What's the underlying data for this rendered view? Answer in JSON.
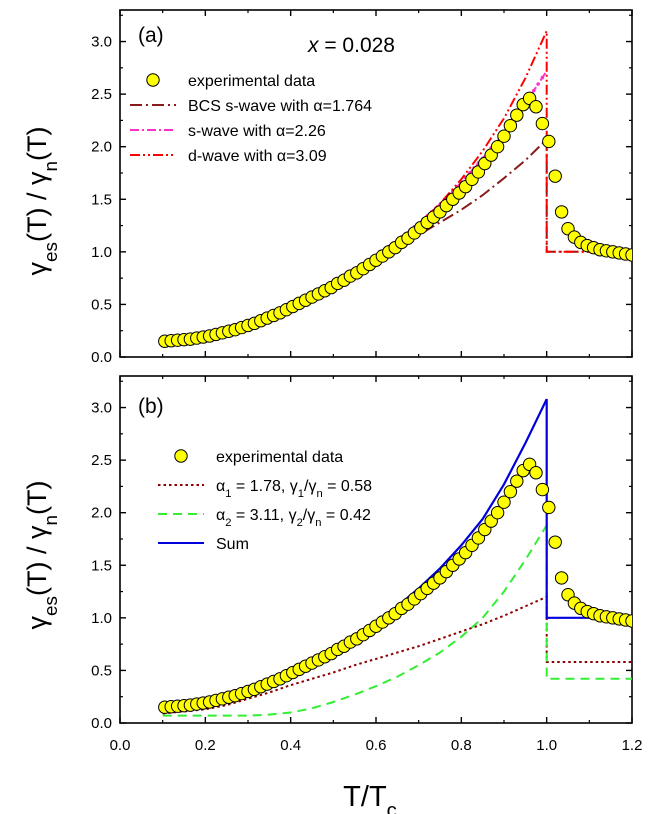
{
  "chart_data": [
    {
      "type": "line",
      "panel_label": "(a)",
      "annotation": "x = 0.028",
      "xlim": [
        0.0,
        1.2
      ],
      "ylim": [
        0.0,
        3.3
      ],
      "x_ticks": [
        0.0,
        0.2,
        0.4,
        0.6,
        0.8,
        1.0,
        1.2
      ],
      "y_ticks": [
        0.0,
        0.5,
        1.0,
        1.5,
        2.0,
        2.5,
        3.0
      ],
      "ylabel": "γes(T) / γn(T)",
      "legend_position": "top-left",
      "series": [
        {
          "name": "experimental data",
          "style": "markers",
          "color": "#ffff00",
          "x": [
            0.105,
            0.12,
            0.135,
            0.15,
            0.165,
            0.18,
            0.195,
            0.21,
            0.225,
            0.24,
            0.255,
            0.27,
            0.285,
            0.3,
            0.315,
            0.33,
            0.345,
            0.36,
            0.375,
            0.39,
            0.405,
            0.42,
            0.435,
            0.45,
            0.465,
            0.48,
            0.495,
            0.51,
            0.525,
            0.54,
            0.555,
            0.57,
            0.585,
            0.6,
            0.615,
            0.63,
            0.645,
            0.66,
            0.675,
            0.69,
            0.705,
            0.72,
            0.735,
            0.75,
            0.765,
            0.78,
            0.795,
            0.81,
            0.825,
            0.84,
            0.855,
            0.87,
            0.885,
            0.9,
            0.915,
            0.93,
            0.945,
            0.96,
            0.975,
            0.99,
            1.005,
            1.02,
            1.035,
            1.05,
            1.065,
            1.08,
            1.095,
            1.11,
            1.125,
            1.14,
            1.155,
            1.17,
            1.185,
            1.2
          ],
          "y": [
            0.15,
            0.155,
            0.16,
            0.165,
            0.17,
            0.18,
            0.19,
            0.2,
            0.215,
            0.23,
            0.245,
            0.26,
            0.28,
            0.3,
            0.32,
            0.345,
            0.37,
            0.395,
            0.42,
            0.45,
            0.48,
            0.51,
            0.54,
            0.57,
            0.6,
            0.63,
            0.66,
            0.7,
            0.73,
            0.77,
            0.8,
            0.84,
            0.88,
            0.92,
            0.96,
            1.0,
            1.04,
            1.09,
            1.13,
            1.18,
            1.23,
            1.28,
            1.33,
            1.38,
            1.44,
            1.5,
            1.56,
            1.62,
            1.69,
            1.76,
            1.84,
            1.92,
            2.0,
            2.1,
            2.2,
            2.3,
            2.4,
            2.46,
            2.38,
            2.22,
            2.05,
            1.72,
            1.38,
            1.22,
            1.14,
            1.09,
            1.06,
            1.04,
            1.02,
            1.01,
            1.0,
            0.99,
            0.98,
            0.97
          ]
        },
        {
          "name": "BCS s-wave with α=1.764",
          "style": "dash-dot",
          "color": "#8b1a1a",
          "x": [
            0.1,
            0.15,
            0.2,
            0.25,
            0.3,
            0.35,
            0.4,
            0.45,
            0.5,
            0.55,
            0.6,
            0.65,
            0.7,
            0.75,
            0.8,
            0.85,
            0.9,
            0.95,
            1.0,
            1.0,
            1.05,
            1.1,
            1.15,
            1.2
          ],
          "y": [
            0.14,
            0.16,
            0.19,
            0.25,
            0.33,
            0.42,
            0.52,
            0.62,
            0.72,
            0.83,
            0.94,
            1.05,
            1.16,
            1.28,
            1.4,
            1.54,
            1.7,
            1.87,
            2.07,
            1.0,
            1.0,
            1.0,
            1.0,
            1.0
          ]
        },
        {
          "name": "s-wave with α=2.26",
          "style": "dash-dot-markers",
          "color": "#ff33cc",
          "x": [
            0.1,
            0.15,
            0.2,
            0.25,
            0.3,
            0.35,
            0.4,
            0.45,
            0.5,
            0.55,
            0.6,
            0.65,
            0.7,
            0.75,
            0.8,
            0.85,
            0.9,
            0.95,
            1.0
          ],
          "y": [
            0.15,
            0.15,
            0.17,
            0.21,
            0.28,
            0.37,
            0.47,
            0.58,
            0.7,
            0.83,
            0.96,
            1.11,
            1.27,
            1.45,
            1.66,
            1.89,
            2.14,
            2.41,
            2.72
          ]
        },
        {
          "name": "d-wave with α=3.09",
          "style": "dash-dot-dot",
          "color": "#ff0000",
          "x": [
            0.1,
            0.15,
            0.2,
            0.25,
            0.3,
            0.35,
            0.4,
            0.45,
            0.5,
            0.55,
            0.6,
            0.65,
            0.7,
            0.75,
            0.8,
            0.85,
            0.9,
            0.95,
            1.0,
            1.0,
            1.05,
            1.1,
            1.15,
            1.2
          ],
          "y": [
            0.15,
            0.15,
            0.17,
            0.21,
            0.28,
            0.37,
            0.46,
            0.56,
            0.67,
            0.8,
            0.94,
            1.09,
            1.26,
            1.46,
            1.69,
            1.96,
            2.27,
            2.65,
            3.1,
            1.0,
            1.0,
            1.0,
            1.0,
            1.0
          ]
        }
      ]
    },
    {
      "type": "line",
      "panel_label": "(b)",
      "xlim": [
        0.0,
        1.2
      ],
      "ylim": [
        0.0,
        3.3
      ],
      "x_ticks": [
        0.0,
        0.2,
        0.4,
        0.6,
        0.8,
        1.0,
        1.2
      ],
      "y_ticks": [
        0.0,
        0.5,
        1.0,
        1.5,
        2.0,
        2.5,
        3.0
      ],
      "xlabel": "T/Tc",
      "ylabel": "γes(T) / γn(T)",
      "legend_position": "middle-left",
      "series": [
        {
          "name": "experimental data",
          "style": "markers",
          "color": "#ffff00",
          "x": [
            0.105,
            0.12,
            0.135,
            0.15,
            0.165,
            0.18,
            0.195,
            0.21,
            0.225,
            0.24,
            0.255,
            0.27,
            0.285,
            0.3,
            0.315,
            0.33,
            0.345,
            0.36,
            0.375,
            0.39,
            0.405,
            0.42,
            0.435,
            0.45,
            0.465,
            0.48,
            0.495,
            0.51,
            0.525,
            0.54,
            0.555,
            0.57,
            0.585,
            0.6,
            0.615,
            0.63,
            0.645,
            0.66,
            0.675,
            0.69,
            0.705,
            0.72,
            0.735,
            0.75,
            0.765,
            0.78,
            0.795,
            0.81,
            0.825,
            0.84,
            0.855,
            0.87,
            0.885,
            0.9,
            0.915,
            0.93,
            0.945,
            0.96,
            0.975,
            0.99,
            1.005,
            1.02,
            1.035,
            1.05,
            1.065,
            1.08,
            1.095,
            1.11,
            1.125,
            1.14,
            1.155,
            1.17,
            1.185,
            1.2
          ],
          "y": [
            0.15,
            0.155,
            0.16,
            0.165,
            0.17,
            0.18,
            0.19,
            0.2,
            0.215,
            0.23,
            0.245,
            0.26,
            0.28,
            0.3,
            0.32,
            0.345,
            0.37,
            0.395,
            0.42,
            0.45,
            0.48,
            0.51,
            0.54,
            0.57,
            0.6,
            0.63,
            0.66,
            0.7,
            0.73,
            0.77,
            0.8,
            0.84,
            0.88,
            0.92,
            0.96,
            1.0,
            1.04,
            1.09,
            1.13,
            1.18,
            1.23,
            1.28,
            1.33,
            1.38,
            1.44,
            1.5,
            1.56,
            1.62,
            1.69,
            1.76,
            1.84,
            1.92,
            2.0,
            2.1,
            2.2,
            2.3,
            2.4,
            2.46,
            2.38,
            2.22,
            2.05,
            1.72,
            1.38,
            1.22,
            1.14,
            1.09,
            1.06,
            1.04,
            1.02,
            1.01,
            1.0,
            0.99,
            0.98,
            0.97
          ]
        },
        {
          "name": "α1 = 1.78, γ1/γn = 0.58",
          "style": "dotted",
          "color": "#8b0000",
          "x": [
            0.1,
            0.15,
            0.2,
            0.25,
            0.3,
            0.35,
            0.4,
            0.45,
            0.5,
            0.55,
            0.6,
            0.65,
            0.7,
            0.75,
            0.8,
            0.85,
            0.9,
            0.95,
            1.0,
            1.0,
            1.05,
            1.1,
            1.15,
            1.2
          ],
          "y": [
            0.09,
            0.11,
            0.13,
            0.17,
            0.23,
            0.29,
            0.36,
            0.42,
            0.48,
            0.55,
            0.61,
            0.67,
            0.73,
            0.8,
            0.87,
            0.94,
            1.02,
            1.11,
            1.2,
            0.58,
            0.58,
            0.58,
            0.58,
            0.58
          ]
        },
        {
          "name": "α2 = 3.11, γ2/γn = 0.42",
          "style": "dashed",
          "color": "#33ee33",
          "x": [
            0.1,
            0.15,
            0.2,
            0.25,
            0.3,
            0.35,
            0.4,
            0.45,
            0.5,
            0.55,
            0.6,
            0.65,
            0.7,
            0.75,
            0.8,
            0.85,
            0.9,
            0.95,
            1.0,
            1.0,
            1.05,
            1.1,
            1.15,
            1.2
          ],
          "y": [
            0.07,
            0.07,
            0.07,
            0.07,
            0.07,
            0.08,
            0.1,
            0.14,
            0.2,
            0.27,
            0.35,
            0.44,
            0.55,
            0.67,
            0.82,
            1.0,
            1.25,
            1.55,
            1.88,
            0.42,
            0.42,
            0.42,
            0.42,
            0.42
          ]
        },
        {
          "name": "Sum",
          "style": "solid",
          "color": "#0000dd",
          "x": [
            0.1,
            0.15,
            0.2,
            0.25,
            0.3,
            0.35,
            0.4,
            0.45,
            0.5,
            0.55,
            0.6,
            0.65,
            0.7,
            0.75,
            0.8,
            0.85,
            0.9,
            0.95,
            1.0,
            1.0,
            1.05,
            1.1,
            1.15,
            1.2
          ],
          "y": [
            0.16,
            0.17,
            0.2,
            0.24,
            0.3,
            0.37,
            0.46,
            0.56,
            0.68,
            0.82,
            0.96,
            1.11,
            1.28,
            1.47,
            1.69,
            1.94,
            2.27,
            2.66,
            3.08,
            1.0,
            1.0,
            1.0,
            1.0,
            1.0
          ]
        }
      ]
    }
  ]
}
